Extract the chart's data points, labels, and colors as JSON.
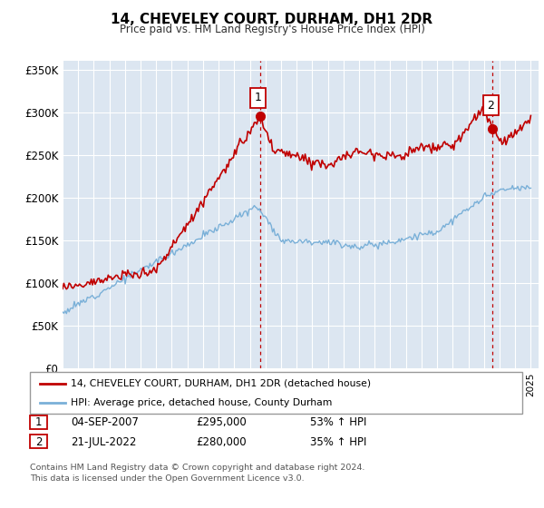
{
  "title": "14, CHEVELEY COURT, DURHAM, DH1 2DR",
  "subtitle": "Price paid vs. HM Land Registry's House Price Index (HPI)",
  "ylim": [
    0,
    360000
  ],
  "xlim_start": 1995.0,
  "xlim_end": 2025.5,
  "hpi_color": "#7ab0d8",
  "price_color": "#c00000",
  "bg_color": "#dce6f1",
  "ann1_x": 2007.67,
  "ann1_y": 295000,
  "ann2_x": 2022.54,
  "ann2_y": 280000,
  "legend_line1": "14, CHEVELEY COURT, DURHAM, DH1 2DR (detached house)",
  "legend_line2": "HPI: Average price, detached house, County Durham",
  "footer": "Contains HM Land Registry data © Crown copyright and database right 2024.\nThis data is licensed under the Open Government Licence v3.0.",
  "table_rows": [
    {
      "num": "1",
      "date": "04-SEP-2007",
      "price": "£295,000",
      "pct": "53% ↑ HPI"
    },
    {
      "num": "2",
      "date": "21-JUL-2022",
      "price": "£280,000",
      "pct": "35% ↑ HPI"
    }
  ]
}
